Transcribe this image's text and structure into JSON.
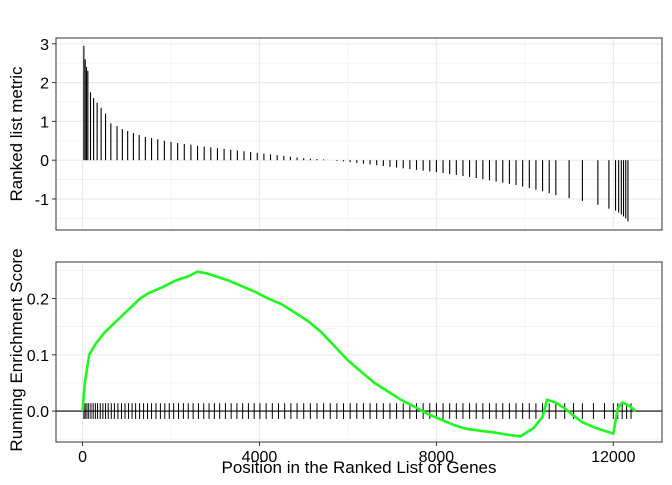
{
  "chart_data": [
    {
      "type": "bar",
      "panel": "top",
      "ylabel": "Ranked list metric",
      "xlim": [
        -600,
        13100
      ],
      "ylim": [
        -1.8,
        3.15
      ],
      "yticks": [
        -1,
        0,
        1,
        2,
        3
      ],
      "ytick_labels": [
        "-1",
        "0",
        "1",
        "2",
        "3"
      ],
      "grid": true,
      "series": [
        {
          "positions": [
            30,
            60,
            90,
            120,
            180,
            250,
            330,
            420,
            520,
            640,
            780,
            900,
            1020,
            1150,
            1280,
            1420,
            1560,
            1700,
            1850,
            2000,
            2150,
            2300,
            2450,
            2600,
            2750,
            2900,
            3050,
            3200,
            3350,
            3500,
            3650,
            3800,
            3950,
            4100,
            4250,
            4400,
            4550,
            4700,
            4850,
            5000,
            5150,
            5300,
            5450,
            5600,
            5750,
            5900,
            6050,
            6200,
            6350,
            6500,
            6650,
            6800,
            6950,
            7100,
            7250,
            7400,
            7550,
            7700,
            7850,
            8000,
            8150,
            8300,
            8450,
            8600,
            8750,
            8900,
            9050,
            9200,
            9350,
            9500,
            9650,
            9800,
            9950,
            10100,
            10250,
            10400,
            10550,
            10700,
            11000,
            11300,
            11650,
            11900,
            12050,
            12120,
            12180,
            12230,
            12280,
            12330
          ],
          "values": [
            2.95,
            2.6,
            2.4,
            2.3,
            1.75,
            1.6,
            1.48,
            1.35,
            1.2,
            0.95,
            0.88,
            0.8,
            0.75,
            0.7,
            0.65,
            0.6,
            0.57,
            0.54,
            0.5,
            0.47,
            0.44,
            0.42,
            0.4,
            0.37,
            0.35,
            0.33,
            0.31,
            0.29,
            0.27,
            0.25,
            0.23,
            0.21,
            0.19,
            0.17,
            0.15,
            0.13,
            0.11,
            0.09,
            0.07,
            0.05,
            0.04,
            0.03,
            0.02,
            0.0,
            -0.02,
            -0.03,
            -0.05,
            -0.07,
            -0.09,
            -0.11,
            -0.13,
            -0.15,
            -0.17,
            -0.19,
            -0.21,
            -0.23,
            -0.25,
            -0.27,
            -0.29,
            -0.31,
            -0.33,
            -0.36,
            -0.38,
            -0.41,
            -0.43,
            -0.46,
            -0.49,
            -0.52,
            -0.55,
            -0.58,
            -0.61,
            -0.64,
            -0.68,
            -0.72,
            -0.76,
            -0.8,
            -0.85,
            -0.9,
            -0.98,
            -1.05,
            -1.15,
            -1.25,
            -1.3,
            -1.35,
            -1.4,
            -1.45,
            -1.5,
            -1.58
          ]
        }
      ]
    },
    {
      "type": "line",
      "panel": "bottom",
      "xlabel": "Position in the Ranked List of Genes",
      "ylabel": "Running Enrichment Score",
      "xlim": [
        -600,
        13100
      ],
      "ylim": [
        -0.055,
        0.265
      ],
      "xticks": [
        0,
        4000,
        8000,
        12000
      ],
      "xtick_labels": [
        "0",
        "4000",
        "8000",
        "12000"
      ],
      "yticks": [
        0.0,
        0.1,
        0.2
      ],
      "ytick_labels": [
        "0.0",
        "0.1",
        "0.2"
      ],
      "grid": true,
      "line_color": "#1ef81e",
      "hline_y": 0,
      "series": [
        {
          "x": [
            0,
            50,
            150,
            300,
            500,
            700,
            900,
            1100,
            1300,
            1500,
            1800,
            2100,
            2400,
            2600,
            2800,
            3000,
            3300,
            3600,
            3900,
            4200,
            4500,
            4800,
            5100,
            5400,
            5700,
            6000,
            6300,
            6600,
            6900,
            7200,
            7500,
            7800,
            8100,
            8400,
            8700,
            9000,
            9300,
            9600,
            9900,
            10200,
            10400,
            10500,
            10700,
            10900,
            11100,
            11300,
            11600,
            11800,
            12000,
            12100,
            12200,
            12350,
            12500
          ],
          "y": [
            0.0,
            0.05,
            0.1,
            0.12,
            0.14,
            0.155,
            0.17,
            0.185,
            0.2,
            0.21,
            0.22,
            0.232,
            0.24,
            0.248,
            0.245,
            0.24,
            0.232,
            0.222,
            0.212,
            0.2,
            0.19,
            0.175,
            0.16,
            0.14,
            0.115,
            0.09,
            0.07,
            0.05,
            0.035,
            0.02,
            0.008,
            -0.005,
            -0.015,
            -0.025,
            -0.032,
            -0.035,
            -0.038,
            -0.042,
            -0.045,
            -0.03,
            -0.01,
            0.02,
            0.015,
            0.005,
            -0.008,
            -0.02,
            -0.03,
            -0.035,
            -0.04,
            0.005,
            0.015,
            0.01,
            0.0
          ]
        }
      ],
      "gene_hits": [
        30,
        60,
        100,
        140,
        190,
        240,
        290,
        340,
        400,
        460,
        520,
        580,
        650,
        720,
        800,
        880,
        960,
        1040,
        1120,
        1200,
        1290,
        1380,
        1470,
        1560,
        1660,
        1760,
        1860,
        1960,
        2060,
        2170,
        2280,
        2390,
        2500,
        2620,
        2740,
        2860,
        2980,
        3100,
        3230,
        3360,
        3490,
        3620,
        3750,
        3880,
        4010,
        4150,
        4290,
        4430,
        4570,
        4710,
        4850,
        5000,
        5150,
        5300,
        5450,
        5600,
        5750,
        5900,
        6050,
        6200,
        6350,
        6500,
        6650,
        6800,
        6950,
        7100,
        7250,
        7400,
        7550,
        7700,
        7850,
        8000,
        8150,
        8300,
        8450,
        8600,
        8750,
        8900,
        9050,
        9200,
        9350,
        9500,
        9650,
        9800,
        9950,
        10100,
        10250,
        10400,
        10550,
        10700,
        10900,
        11100,
        11300,
        11550,
        11800,
        12000,
        12100,
        12200,
        12300,
        12400
      ]
    }
  ]
}
